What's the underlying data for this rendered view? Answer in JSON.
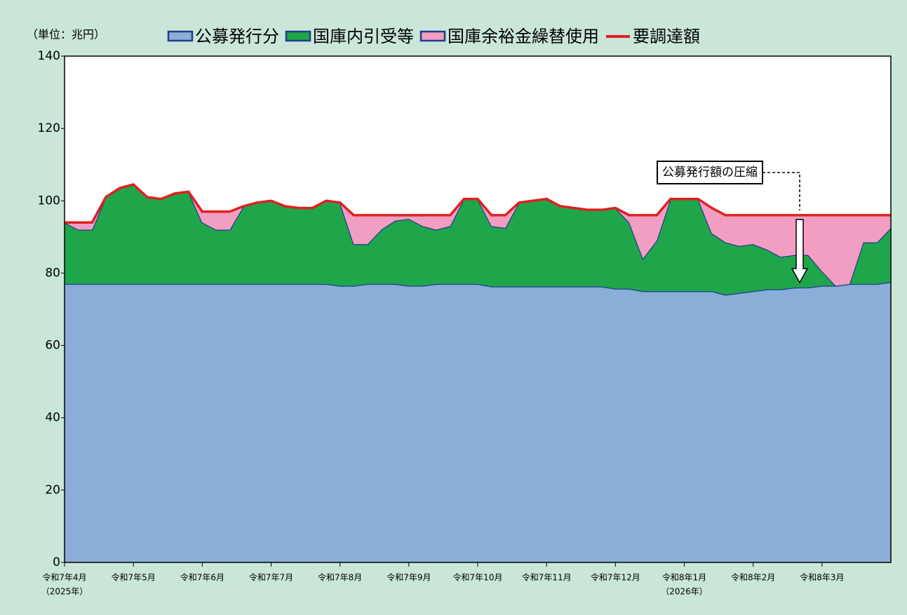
{
  "chart_data": {
    "type": "stacked_area",
    "unit_label": "（単位：兆円）",
    "categories": [
      "令和7年4月",
      null,
      null,
      null,
      null,
      "令和7年5月",
      null,
      null,
      null,
      null,
      "令和7年6月",
      null,
      null,
      null,
      null,
      "令和7年7月",
      null,
      null,
      null,
      null,
      "令和7年8月",
      null,
      null,
      null,
      null,
      "令和7年9月",
      null,
      null,
      null,
      null,
      "令和7年10月",
      null,
      null,
      null,
      null,
      "令和7年11月",
      null,
      null,
      null,
      null,
      "令和7年12月",
      null,
      null,
      null,
      null,
      "令和8年1月",
      null,
      null,
      null,
      null,
      "令和8年2月",
      null,
      null,
      null,
      null,
      "令和8年3月",
      null,
      null,
      null,
      null,
      null
    ],
    "category_notes": [
      "（2025年）",
      null,
      null,
      null,
      null,
      null,
      null,
      null,
      null,
      null,
      null,
      null,
      null,
      null,
      null,
      null,
      null,
      null,
      null,
      null,
      null,
      null,
      null,
      null,
      null,
      null,
      null,
      null,
      null,
      null,
      null,
      null,
      null,
      null,
      null,
      null,
      null,
      null,
      null,
      null,
      null,
      null,
      null,
      null,
      null,
      "（2026年）",
      null,
      null,
      null,
      null,
      null,
      null,
      null,
      null,
      null,
      null,
      null,
      null,
      null,
      null,
      null
    ],
    "series": [
      {
        "name": "公募発行分",
        "color": "#8aaed8",
        "values": [
          77,
          77,
          77,
          77,
          77,
          77,
          77,
          77,
          77,
          77,
          77,
          77,
          77,
          77,
          77,
          77,
          77,
          77,
          77,
          77,
          76.5,
          76.5,
          77,
          77,
          77,
          76.5,
          76.5,
          77,
          77,
          77,
          77,
          76.3,
          76.3,
          76.3,
          76.3,
          76.3,
          76.3,
          76.3,
          76.3,
          76.3,
          75.7,
          75.7,
          75,
          75,
          75,
          75,
          75,
          75,
          74,
          74.5,
          75,
          75.5,
          75.5,
          76,
          76,
          76.5,
          76.5,
          77,
          77,
          77,
          77.5
        ]
      },
      {
        "name": "国庫内引受等",
        "color": "#1fa64b",
        "values": [
          17,
          15,
          15,
          24,
          26.5,
          27.5,
          24,
          23.5,
          25,
          25.5,
          17,
          15,
          15,
          21.5,
          22.5,
          23,
          21.5,
          21,
          21,
          23,
          23,
          11.5,
          11,
          15,
          17.5,
          18.5,
          16.5,
          15,
          16,
          23.5,
          23.5,
          16.7,
          16.2,
          23.2,
          23.7,
          24.2,
          22.2,
          21.7,
          21.2,
          21.2,
          22.3,
          18.3,
          9,
          14,
          25.5,
          25.5,
          25.5,
          16,
          14.5,
          13,
          13,
          11,
          9,
          9,
          9,
          4,
          0,
          0,
          11.5,
          11.5,
          15
        ]
      },
      {
        "name": "国庫余裕金繰替使用",
        "color": "#f19ec2",
        "values": [
          0,
          2,
          2,
          0,
          0,
          0,
          0,
          0,
          0,
          0,
          3,
          5,
          5,
          0,
          0,
          0,
          0,
          0,
          0,
          0,
          0,
          8,
          8,
          4,
          1.5,
          1,
          3,
          4,
          3,
          0,
          0,
          3,
          3.5,
          0,
          0,
          0,
          0,
          0,
          0,
          0,
          0,
          2,
          12,
          7,
          0,
          0,
          0,
          7,
          7.5,
          8.5,
          8,
          9.5,
          11.5,
          11,
          11,
          15.5,
          19.5,
          19,
          7.5,
          7.5,
          3.5
        ]
      },
      {
        "name": "要調達額",
        "color": "#e0201f",
        "type": "line",
        "values": [
          94,
          94,
          94,
          101,
          103.5,
          104.5,
          101,
          100.5,
          102,
          102.5,
          97,
          97,
          97,
          98.5,
          99.5,
          100,
          98.5,
          98,
          98,
          100,
          99.5,
          96,
          96,
          96,
          96,
          96,
          96,
          96,
          96,
          100.5,
          100.5,
          96,
          96,
          99.5,
          100,
          100.5,
          98.5,
          98,
          97.5,
          97.5,
          98,
          96,
          96,
          96,
          100.5,
          100.5,
          100.5,
          98,
          96,
          96,
          96,
          96,
          96,
          96,
          96,
          96,
          96,
          96,
          96,
          96,
          96
        ]
      }
    ],
    "annotation": "公募発行額の圧縮",
    "ylim": [
      0,
      140
    ],
    "yticks": [
      0,
      20,
      40,
      60,
      80,
      100,
      120,
      140
    ]
  }
}
